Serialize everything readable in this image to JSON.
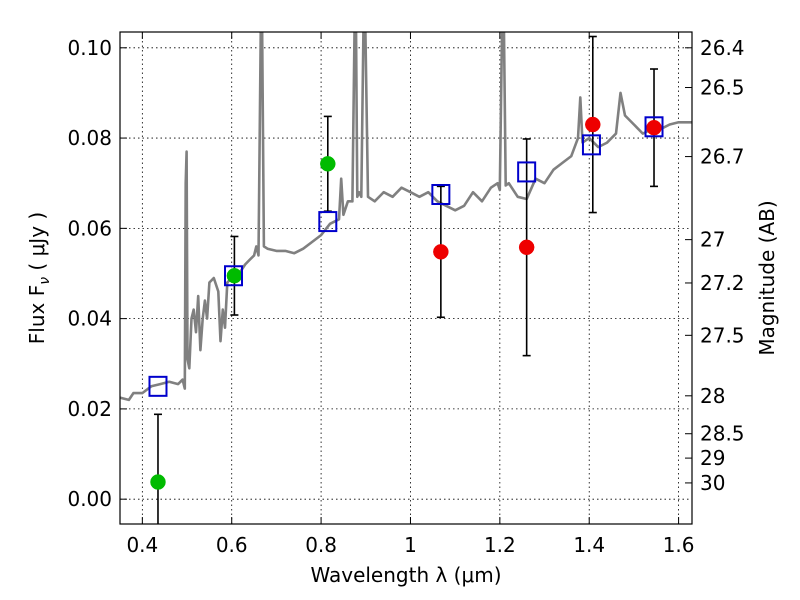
{
  "chart_data": {
    "type": "scatter",
    "xlabel": "Wavelength  λ (μm)",
    "ylabel": "Flux  F",
    "ylabel_sub": "ν",
    "ylabel_unit": " ( μJy )",
    "y2label": "Magnitude (AB)",
    "xlim": [
      0.35,
      1.63
    ],
    "ylim": [
      -0.0055,
      0.1035
    ],
    "grid": true,
    "x_ticks": [
      0.4,
      0.6,
      0.8,
      1.0,
      1.2,
      1.4,
      1.6
    ],
    "x_tick_labels": [
      "0.4",
      "0.6",
      "0.8",
      "1",
      "1.2",
      "1.4",
      "1.6"
    ],
    "y_ticks": [
      0.0,
      0.02,
      0.04,
      0.06,
      0.08,
      0.1
    ],
    "y_tick_labels": [
      "0.00",
      "0.02",
      "0.04",
      "0.06",
      "0.08",
      "0.10"
    ],
    "y2_ticks": [
      {
        "label": "26.4",
        "flux": 0.1
      },
      {
        "label": "26.5",
        "flux": 0.0912
      },
      {
        "label": "26.7",
        "flux": 0.0759
      },
      {
        "label": "27",
        "flux": 0.0575
      },
      {
        "label": "27.2",
        "flux": 0.0479
      },
      {
        "label": "27.5",
        "flux": 0.0363
      },
      {
        "label": "28",
        "flux": 0.0229
      },
      {
        "label": "28.5",
        "flux": 0.0145
      },
      {
        "label": "29",
        "flux": 0.0091
      },
      {
        "label": "30",
        "flux": 0.0036
      }
    ],
    "colors": {
      "model": "#808080",
      "green": "#00bb00",
      "red": "#ee0000",
      "square": "#0000cc",
      "errorbar": "#000000"
    },
    "series": [
      {
        "kind": "model_spectrum",
        "points": [
          [
            0.35,
            0.0225
          ],
          [
            0.37,
            0.022
          ],
          [
            0.38,
            0.0235
          ],
          [
            0.4,
            0.0235
          ],
          [
            0.42,
            0.025
          ],
          [
            0.44,
            0.0255
          ],
          [
            0.46,
            0.026
          ],
          [
            0.48,
            0.0255
          ],
          [
            0.49,
            0.0265
          ],
          [
            0.495,
            0.0245
          ],
          [
            0.497,
            0.07
          ],
          [
            0.499,
            0.077
          ],
          [
            0.501,
            0.031
          ],
          [
            0.505,
            0.029
          ],
          [
            0.51,
            0.04
          ],
          [
            0.515,
            0.042
          ],
          [
            0.52,
            0.037
          ],
          [
            0.525,
            0.045
          ],
          [
            0.53,
            0.033
          ],
          [
            0.535,
            0.04
          ],
          [
            0.54,
            0.044
          ],
          [
            0.545,
            0.04
          ],
          [
            0.55,
            0.048
          ],
          [
            0.56,
            0.049
          ],
          [
            0.57,
            0.046
          ],
          [
            0.575,
            0.035
          ],
          [
            0.58,
            0.042
          ],
          [
            0.585,
            0.038
          ],
          [
            0.59,
            0.048
          ],
          [
            0.6,
            0.049
          ],
          [
            0.62,
            0.0505
          ],
          [
            0.63,
            0.052
          ],
          [
            0.64,
            0.053
          ],
          [
            0.65,
            0.054
          ],
          [
            0.655,
            0.056
          ],
          [
            0.66,
            0.054
          ],
          [
            0.665,
            0.105
          ],
          [
            0.668,
            0.105
          ],
          [
            0.672,
            0.056
          ],
          [
            0.68,
            0.0555
          ],
          [
            0.7,
            0.055
          ],
          [
            0.72,
            0.055
          ],
          [
            0.74,
            0.0545
          ],
          [
            0.76,
            0.0555
          ],
          [
            0.78,
            0.057
          ],
          [
            0.8,
            0.0585
          ],
          [
            0.82,
            0.061
          ],
          [
            0.84,
            0.062
          ],
          [
            0.845,
            0.071
          ],
          [
            0.85,
            0.063
          ],
          [
            0.86,
            0.066
          ],
          [
            0.87,
            0.066
          ],
          [
            0.875,
            0.105
          ],
          [
            0.878,
            0.105
          ],
          [
            0.881,
            0.067
          ],
          [
            0.885,
            0.068
          ],
          [
            0.89,
            0.067
          ],
          [
            0.895,
            0.105
          ],
          [
            0.899,
            0.105
          ],
          [
            0.905,
            0.067
          ],
          [
            0.92,
            0.066
          ],
          [
            0.94,
            0.068
          ],
          [
            0.96,
            0.067
          ],
          [
            0.98,
            0.069
          ],
          [
            1.0,
            0.068
          ],
          [
            1.02,
            0.067
          ],
          [
            1.04,
            0.068
          ],
          [
            1.06,
            0.066
          ],
          [
            1.08,
            0.065
          ],
          [
            1.1,
            0.064
          ],
          [
            1.12,
            0.065
          ],
          [
            1.14,
            0.068
          ],
          [
            1.16,
            0.066
          ],
          [
            1.18,
            0.069
          ],
          [
            1.195,
            0.07
          ],
          [
            1.2,
            0.0685
          ],
          [
            1.205,
            0.105
          ],
          [
            1.209,
            0.105
          ],
          [
            1.213,
            0.0695
          ],
          [
            1.22,
            0.07
          ],
          [
            1.24,
            0.067
          ],
          [
            1.26,
            0.0665
          ],
          [
            1.28,
            0.071
          ],
          [
            1.3,
            0.07
          ],
          [
            1.32,
            0.073
          ],
          [
            1.34,
            0.0745
          ],
          [
            1.36,
            0.076
          ],
          [
            1.375,
            0.08
          ],
          [
            1.38,
            0.089
          ],
          [
            1.385,
            0.079
          ],
          [
            1.4,
            0.08
          ],
          [
            1.42,
            0.078
          ],
          [
            1.44,
            0.079
          ],
          [
            1.46,
            0.081
          ],
          [
            1.47,
            0.09
          ],
          [
            1.48,
            0.085
          ],
          [
            1.5,
            0.083
          ],
          [
            1.52,
            0.081
          ],
          [
            1.54,
            0.082
          ],
          [
            1.56,
            0.082
          ],
          [
            1.58,
            0.083
          ],
          [
            1.6,
            0.0835
          ],
          [
            1.63,
            0.0835
          ]
        ]
      },
      {
        "kind": "model_photometry_squares",
        "points": [
          [
            0.435,
            0.025
          ],
          [
            0.604,
            0.0495
          ],
          [
            0.815,
            0.0615
          ],
          [
            1.068,
            0.0675
          ],
          [
            1.26,
            0.0725
          ],
          [
            1.405,
            0.0785
          ],
          [
            1.545,
            0.0825
          ]
        ]
      },
      {
        "kind": "observed_points_green",
        "points": [
          {
            "x": 0.435,
            "y": 0.0038,
            "err": 0.015
          },
          {
            "x": 0.606,
            "y": 0.0495,
            "err": 0.0087
          },
          {
            "x": 0.815,
            "y": 0.0743,
            "err": 0.0105
          }
        ]
      },
      {
        "kind": "observed_points_red",
        "points": [
          {
            "x": 1.068,
            "y": 0.0548,
            "err": 0.0145
          },
          {
            "x": 1.26,
            "y": 0.0558,
            "err": 0.024
          },
          {
            "x": 1.408,
            "y": 0.083,
            "err": 0.0195
          },
          {
            "x": 1.545,
            "y": 0.0823,
            "err": 0.013
          }
        ]
      }
    ]
  }
}
